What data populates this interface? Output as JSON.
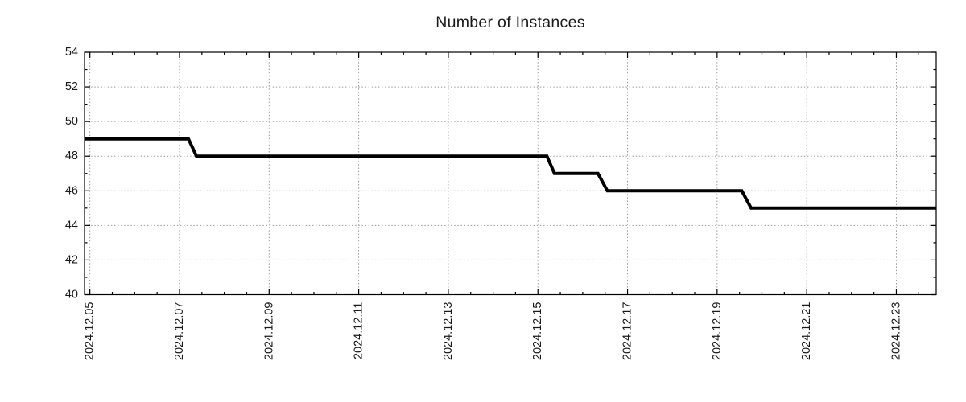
{
  "chart_data": {
    "type": "line",
    "title": "Number of Instances",
    "xlabel": "",
    "ylabel": "",
    "ylim": [
      40,
      54
    ],
    "yticks": [
      40,
      42,
      44,
      46,
      48,
      50,
      52,
      54
    ],
    "y_minor_step": 1,
    "x_day_origin": "2024.12.05",
    "x_tick_days": [
      0,
      2,
      4,
      6,
      8,
      10,
      12,
      14,
      16,
      18
    ],
    "x_tick_labels": [
      "2024.12.05",
      "2024.12.07",
      "2024.12.09",
      "2024.12.11",
      "2024.12.13",
      "2024.12.15",
      "2024.12.17",
      "2024.12.19",
      "2024.12.21",
      "2024.12.23"
    ],
    "x_minor_step_days": 0.5,
    "xlim_days": [
      -0.12,
      18.89
    ],
    "grid": {
      "show": true,
      "style": "dotted",
      "lines": "major-only"
    },
    "legend": "none",
    "line_width": 4,
    "colors": {
      "line": "#000000",
      "grid": "#999999",
      "axis": "#000000",
      "text": "#1a1a1a",
      "background": "#ffffff"
    },
    "series": [
      {
        "name": "Number of Instances",
        "points": [
          {
            "day": -0.12,
            "value": 49
          },
          {
            "day": 2.2,
            "value": 49
          },
          {
            "day": 2.38,
            "value": 48
          },
          {
            "day": 10.2,
            "value": 48
          },
          {
            "day": 10.37,
            "value": 47
          },
          {
            "day": 11.34,
            "value": 47
          },
          {
            "day": 11.55,
            "value": 46
          },
          {
            "day": 14.55,
            "value": 46
          },
          {
            "day": 14.76,
            "value": 45
          },
          {
            "day": 18.89,
            "value": 45
          }
        ]
      }
    ]
  }
}
